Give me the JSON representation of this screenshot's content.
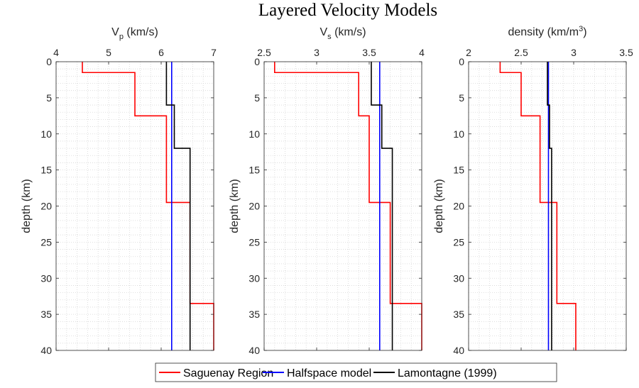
{
  "figure": {
    "title": "Layered Velocity Models"
  },
  "legend": {
    "placement": "bottom-center",
    "entries": [
      {
        "label": "Saguenay Region",
        "color": "#ff0000"
      },
      {
        "label": "Halfspace model",
        "color": "#0000ff"
      },
      {
        "label": "Lamontagne (1999)",
        "color": "#000000"
      }
    ]
  },
  "chart_data": [
    {
      "type": "line",
      "panel": "Vp",
      "xlabel_main": "V",
      "xlabel_sub": "p",
      "xlabel_sup": "",
      "xlabel_unit": " (km/s)",
      "ylabel": "depth (km)",
      "xlim": [
        4,
        7
      ],
      "ylim": [
        0,
        40
      ],
      "y_reversed": true,
      "x_axis_location": "top",
      "grid": "minor dotted",
      "x_ticks": [
        4,
        5,
        6,
        7
      ],
      "x_tick_labels": [
        "4",
        "5",
        "6",
        "7"
      ],
      "y_ticks": [
        0,
        5,
        10,
        15,
        20,
        25,
        30,
        35,
        40
      ],
      "y_tick_labels": [
        "0",
        "5",
        "10",
        "15",
        "20",
        "25",
        "30",
        "35",
        "40"
      ],
      "series": [
        {
          "name": "Saguenay Region",
          "color": "#ff0000",
          "depth_boundaries": [
            0,
            1.5,
            7.5,
            19.5,
            33.5,
            40
          ],
          "values": [
            4.5,
            5.5,
            6.1,
            6.55,
            7.0
          ]
        },
        {
          "name": "Halfspace model",
          "color": "#0000ff",
          "depth_boundaries": [
            0,
            40
          ],
          "values": [
            6.2
          ]
        },
        {
          "name": "Lamontagne (1999)",
          "color": "#000000",
          "depth_boundaries": [
            0,
            6,
            12,
            40
          ],
          "values": [
            6.1,
            6.25,
            6.55
          ]
        }
      ]
    },
    {
      "type": "line",
      "panel": "Vs",
      "xlabel_main": "V",
      "xlabel_sub": "s",
      "xlabel_sup": "",
      "xlabel_unit": " (km/s)",
      "ylabel": "depth (km)",
      "xlim": [
        2.5,
        4
      ],
      "ylim": [
        0,
        40
      ],
      "y_reversed": true,
      "x_axis_location": "top",
      "grid": "minor dotted",
      "x_ticks": [
        2.5,
        3,
        3.5,
        4
      ],
      "x_tick_labels": [
        "2.5",
        "3",
        "3.5",
        "4"
      ],
      "y_ticks": [
        0,
        5,
        10,
        15,
        20,
        25,
        30,
        35,
        40
      ],
      "y_tick_labels": [
        "0",
        "5",
        "10",
        "15",
        "20",
        "25",
        "30",
        "35",
        "40"
      ],
      "series": [
        {
          "name": "Saguenay Region",
          "color": "#ff0000",
          "depth_boundaries": [
            0,
            1.5,
            7.5,
            19.5,
            33.5,
            40
          ],
          "values": [
            2.6,
            3.4,
            3.5,
            3.7,
            4.0
          ]
        },
        {
          "name": "Halfspace model",
          "color": "#0000ff",
          "depth_boundaries": [
            0,
            40
          ],
          "values": [
            3.6
          ]
        },
        {
          "name": "Lamontagne (1999)",
          "color": "#000000",
          "depth_boundaries": [
            0,
            6,
            12,
            40
          ],
          "values": [
            3.52,
            3.62,
            3.72
          ]
        }
      ]
    },
    {
      "type": "line",
      "panel": "density",
      "xlabel_main": "density (km/m",
      "xlabel_sub": "",
      "xlabel_sup": "3",
      "xlabel_unit": ")",
      "ylabel": "depth (km)",
      "xlim": [
        2,
        3.5
      ],
      "ylim": [
        0,
        40
      ],
      "y_reversed": true,
      "x_axis_location": "top",
      "grid": "minor dotted",
      "x_ticks": [
        2,
        2.5,
        3,
        3.5
      ],
      "x_tick_labels": [
        "2",
        "2.5",
        "3",
        "3.5"
      ],
      "y_ticks": [
        0,
        5,
        10,
        15,
        20,
        25,
        30,
        35,
        40
      ],
      "y_tick_labels": [
        "0",
        "5",
        "10",
        "15",
        "20",
        "25",
        "30",
        "35",
        "40"
      ],
      "series": [
        {
          "name": "Saguenay Region",
          "color": "#ff0000",
          "depth_boundaries": [
            0,
            1.5,
            7.5,
            19.5,
            33.5,
            40
          ],
          "values": [
            2.3,
            2.5,
            2.68,
            2.84,
            3.02
          ]
        },
        {
          "name": "Halfspace model",
          "color": "#0000ff",
          "depth_boundaries": [
            0,
            40
          ],
          "values": [
            2.76
          ]
        },
        {
          "name": "Lamontagne (1999)",
          "color": "#000000",
          "depth_boundaries": [
            0,
            6,
            12,
            40
          ],
          "values": [
            2.75,
            2.77,
            2.79
          ]
        }
      ]
    }
  ]
}
